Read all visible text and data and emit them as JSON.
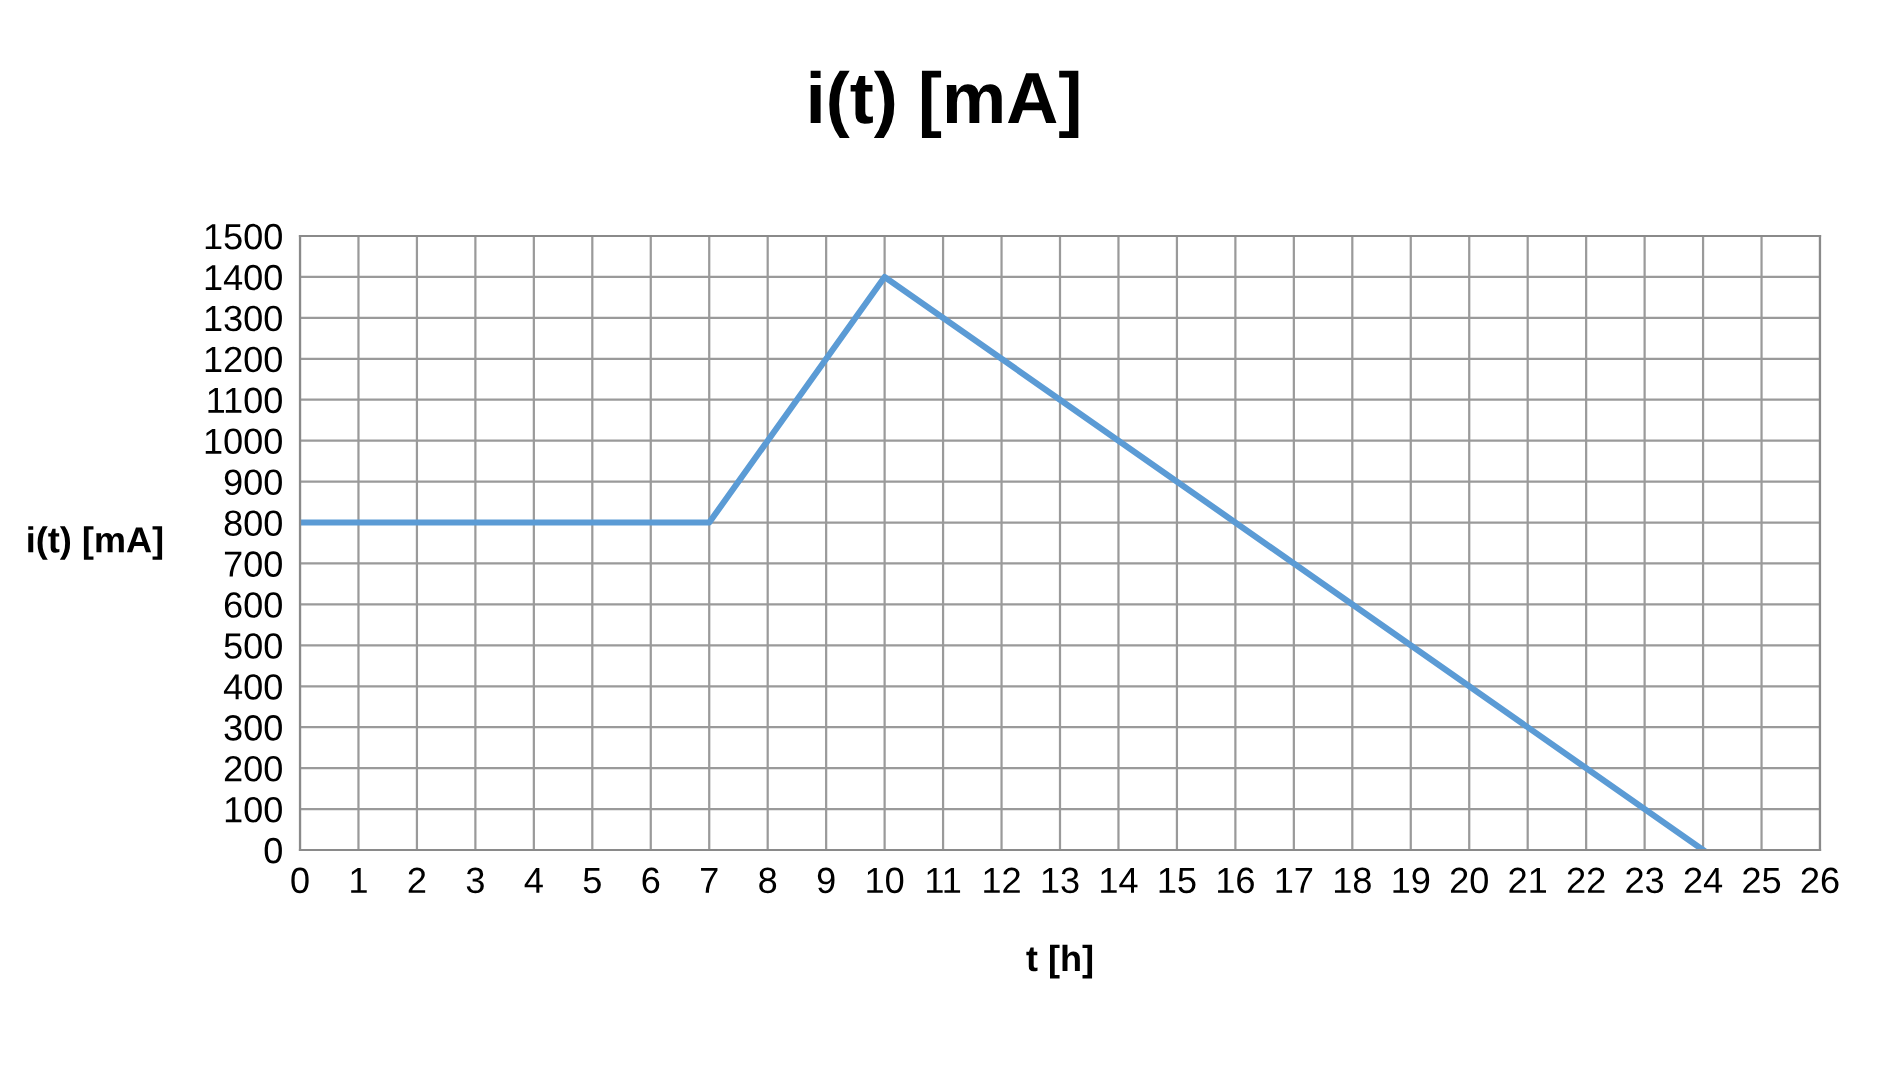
{
  "chart_data": {
    "type": "line",
    "title": "i(t) [mA]",
    "xlabel": "t [h]",
    "ylabel": "i(t) [mA]",
    "x": [
      0,
      7,
      10,
      24
    ],
    "series": [
      {
        "color": "#5b9bd5",
        "values": [
          800,
          800,
          1400,
          0
        ]
      }
    ],
    "xlim": [
      0,
      26
    ],
    "xticks": [
      0,
      1,
      2,
      3,
      4,
      5,
      6,
      7,
      8,
      9,
      10,
      11,
      12,
      13,
      14,
      15,
      16,
      17,
      18,
      19,
      20,
      21,
      22,
      23,
      24,
      25,
      26
    ],
    "ylim": [
      0,
      1500
    ],
    "yticks": [
      0,
      100,
      200,
      300,
      400,
      500,
      600,
      700,
      800,
      900,
      1000,
      1100,
      1200,
      1300,
      1400,
      1500
    ],
    "grid": true,
    "marker": "none",
    "line_style": "solid"
  }
}
